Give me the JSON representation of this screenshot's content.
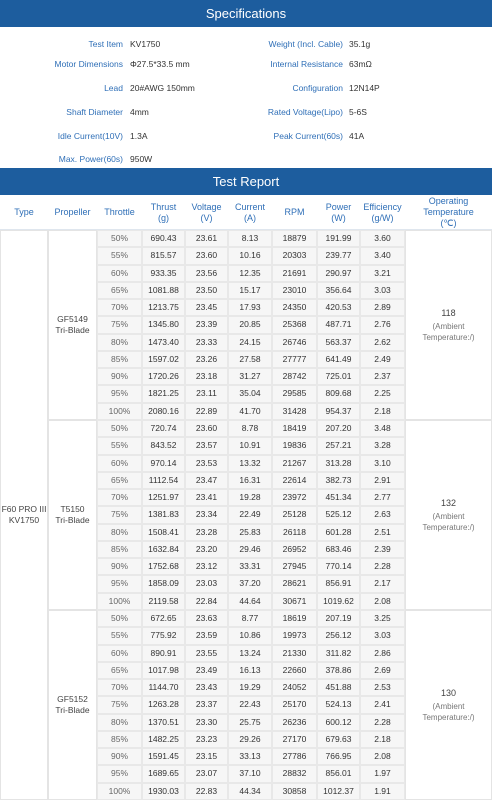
{
  "specifications": {
    "title": "Specifications",
    "rows": [
      [
        "Test Item",
        "KV1750",
        "Weight (Incl. Cable)",
        "35.1g"
      ],
      [
        "Motor Dimensions",
        "Φ27.5*33.5 mm",
        "Internal Resistance",
        "63mΩ"
      ],
      [
        "Lead",
        "20#AWG 150mm",
        "Configuration",
        "12N14P"
      ],
      [
        "Shaft Diameter",
        "4mm",
        "Rated Voltage(Lipo)",
        "5-6S"
      ],
      [
        "Idle Current(10V)",
        "1.3A",
        "Peak Current(60s)",
        "41A"
      ],
      [
        "Max. Power(60s)",
        "950W"
      ]
    ]
  },
  "test_report": {
    "title": "Test Report",
    "columns": [
      [
        "Type"
      ],
      [
        "Propeller"
      ],
      [
        "Throttle"
      ],
      [
        "Thrust",
        "(g)"
      ],
      [
        "Voltage",
        "(V)"
      ],
      [
        "Current",
        "(A)"
      ],
      [
        "RPM"
      ],
      [
        "Power",
        "(W)"
      ],
      [
        "Efficiency",
        "(g/W)"
      ],
      [
        "Operating",
        "Temperature",
        "(℃)"
      ]
    ],
    "type": [
      "F60 PRO III",
      "KV1750"
    ],
    "groups": [
      {
        "propeller": [
          "GF5149",
          "Tri-Blade"
        ],
        "temperature": "118",
        "temperature_note": [
          "(Ambient",
          "Temperature:/)"
        ],
        "rows": [
          [
            "50%",
            "690.43",
            "23.61",
            "8.13",
            "18879",
            "191.99",
            "3.60"
          ],
          [
            "55%",
            "815.57",
            "23.60",
            "10.16",
            "20303",
            "239.77",
            "3.40"
          ],
          [
            "60%",
            "933.35",
            "23.56",
            "12.35",
            "21691",
            "290.97",
            "3.21"
          ],
          [
            "65%",
            "1081.88",
            "23.50",
            "15.17",
            "23010",
            "356.64",
            "3.03"
          ],
          [
            "70%",
            "1213.75",
            "23.45",
            "17.93",
            "24350",
            "420.53",
            "2.89"
          ],
          [
            "75%",
            "1345.80",
            "23.39",
            "20.85",
            "25368",
            "487.71",
            "2.76"
          ],
          [
            "80%",
            "1473.40",
            "23.33",
            "24.15",
            "26746",
            "563.37",
            "2.62"
          ],
          [
            "85%",
            "1597.02",
            "23.26",
            "27.58",
            "27777",
            "641.49",
            "2.49"
          ],
          [
            "90%",
            "1720.26",
            "23.18",
            "31.27",
            "28742",
            "725.01",
            "2.37"
          ],
          [
            "95%",
            "1821.25",
            "23.11",
            "35.04",
            "29585",
            "809.68",
            "2.25"
          ],
          [
            "100%",
            "2080.16",
            "22.89",
            "41.70",
            "31428",
            "954.37",
            "2.18"
          ]
        ]
      },
      {
        "propeller": [
          "T5150",
          "Tri-Blade"
        ],
        "temperature": "132",
        "temperature_note": [
          "(Ambient",
          "Temperature:/)"
        ],
        "rows": [
          [
            "50%",
            "720.74",
            "23.60",
            "8.78",
            "18419",
            "207.20",
            "3.48"
          ],
          [
            "55%",
            "843.52",
            "23.57",
            "10.91",
            "19836",
            "257.21",
            "3.28"
          ],
          [
            "60%",
            "970.14",
            "23.53",
            "13.32",
            "21267",
            "313.28",
            "3.10"
          ],
          [
            "65%",
            "1112.54",
            "23.47",
            "16.31",
            "22614",
            "382.73",
            "2.91"
          ],
          [
            "70%",
            "1251.97",
            "23.41",
            "19.28",
            "23972",
            "451.34",
            "2.77"
          ],
          [
            "75%",
            "1381.83",
            "23.34",
            "22.49",
            "25128",
            "525.12",
            "2.63"
          ],
          [
            "80%",
            "1508.41",
            "23.28",
            "25.83",
            "26118",
            "601.28",
            "2.51"
          ],
          [
            "85%",
            "1632.84",
            "23.20",
            "29.46",
            "26952",
            "683.46",
            "2.39"
          ],
          [
            "90%",
            "1752.68",
            "23.12",
            "33.31",
            "27945",
            "770.14",
            "2.28"
          ],
          [
            "95%",
            "1858.09",
            "23.03",
            "37.20",
            "28621",
            "856.91",
            "2.17"
          ],
          [
            "100%",
            "2119.58",
            "22.84",
            "44.64",
            "30671",
            "1019.62",
            "2.08"
          ]
        ]
      },
      {
        "propeller": [
          "GF5152",
          "Tri-Blade"
        ],
        "temperature": "130",
        "temperature_note": [
          "(Ambient",
          "Temperature:/)"
        ],
        "rows": [
          [
            "50%",
            "672.65",
            "23.63",
            "8.77",
            "18619",
            "207.19",
            "3.25"
          ],
          [
            "55%",
            "775.92",
            "23.59",
            "10.86",
            "19973",
            "256.12",
            "3.03"
          ],
          [
            "60%",
            "890.91",
            "23.55",
            "13.24",
            "21330",
            "311.82",
            "2.86"
          ],
          [
            "65%",
            "1017.98",
            "23.49",
            "16.13",
            "22660",
            "378.86",
            "2.69"
          ],
          [
            "70%",
            "1144.70",
            "23.43",
            "19.29",
            "24052",
            "451.88",
            "2.53"
          ],
          [
            "75%",
            "1263.28",
            "23.37",
            "22.43",
            "25170",
            "524.13",
            "2.41"
          ],
          [
            "80%",
            "1370.51",
            "23.30",
            "25.75",
            "26236",
            "600.12",
            "2.28"
          ],
          [
            "85%",
            "1482.25",
            "23.23",
            "29.26",
            "27170",
            "679.63",
            "2.18"
          ],
          [
            "90%",
            "1591.45",
            "23.15",
            "33.13",
            "27786",
            "766.95",
            "2.08"
          ],
          [
            "95%",
            "1689.65",
            "23.07",
            "37.10",
            "28832",
            "856.01",
            "1.97"
          ],
          [
            "100%",
            "1930.03",
            "22.83",
            "44.34",
            "30858",
            "1012.37",
            "1.91"
          ]
        ]
      }
    ]
  }
}
